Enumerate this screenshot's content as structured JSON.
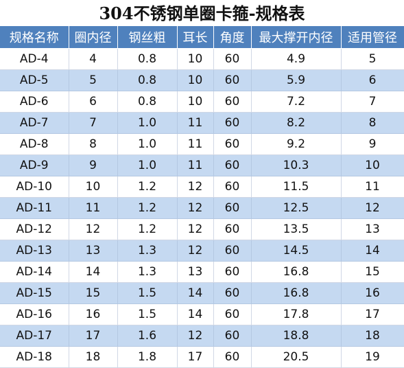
{
  "sheet": {
    "title": "304不锈钢单圈卡箍-规格表",
    "columns": [
      "规格名称",
      "圈内径",
      "钢丝粗",
      "耳长",
      "角度",
      "最大撑开内径",
      "适用管径"
    ],
    "rows": [
      [
        "AD-4",
        "4",
        "0.8",
        "10",
        "60",
        "4.9",
        "5"
      ],
      [
        "AD-5",
        "5",
        "0.8",
        "10",
        "60",
        "5.9",
        "6"
      ],
      [
        "AD-6",
        "6",
        "0.8",
        "10",
        "60",
        "7.2",
        "7"
      ],
      [
        "AD-7",
        "7",
        "1.0",
        "11",
        "60",
        "8.2",
        "8"
      ],
      [
        "AD-8",
        "8",
        "1.0",
        "11",
        "60",
        "9.2",
        "9"
      ],
      [
        "AD-9",
        "9",
        "1.0",
        "11",
        "60",
        "10.3",
        "10"
      ],
      [
        "AD-10",
        "10",
        "1.2",
        "12",
        "60",
        "11.5",
        "11"
      ],
      [
        "AD-11",
        "11",
        "1.2",
        "12",
        "60",
        "12.5",
        "12"
      ],
      [
        "AD-12",
        "12",
        "1.2",
        "12",
        "60",
        "13.5",
        "13"
      ],
      [
        "AD-13",
        "13",
        "1.3",
        "12",
        "60",
        "14.5",
        "14"
      ],
      [
        "AD-14",
        "14",
        "1.3",
        "13",
        "60",
        "16.8",
        "15"
      ],
      [
        "AD-15",
        "15",
        "1.5",
        "14",
        "60",
        "16.8",
        "16"
      ],
      [
        "AD-16",
        "16",
        "1.5",
        "14",
        "60",
        "17.8",
        "17"
      ],
      [
        "AD-17",
        "17",
        "1.6",
        "12",
        "60",
        "18.8",
        "18"
      ],
      [
        "AD-18",
        "18",
        "1.8",
        "17",
        "60",
        "20.5",
        "19"
      ]
    ]
  },
  "colors": {
    "header_bg": "#4f81bd",
    "header_text": "#ffffff",
    "band_bg": "#c5d9f1",
    "plain_bg": "#ffffff"
  }
}
